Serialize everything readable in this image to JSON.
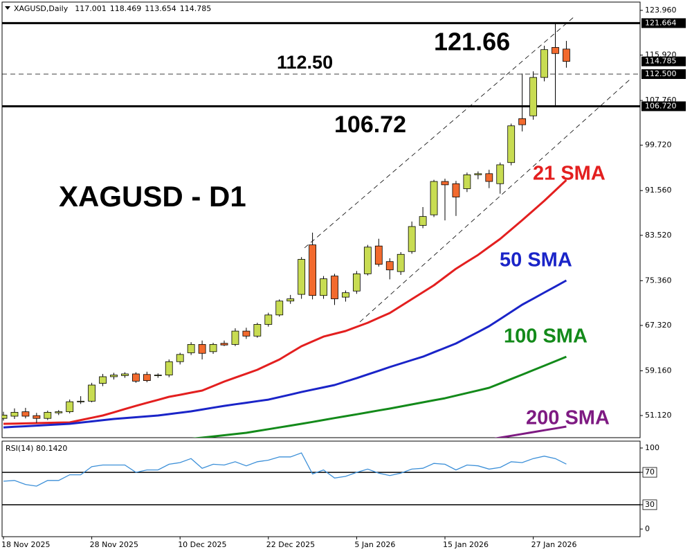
{
  "chart_data": {
    "type": "candlestick",
    "title": "XAGUSD,Daily",
    "categories": [
      "18 Nov 2025",
      null,
      null,
      null,
      null,
      null,
      null,
      null,
      "28 Nov 2025",
      null,
      null,
      null,
      null,
      null,
      null,
      null,
      "10 Dec 2025",
      null,
      null,
      null,
      null,
      null,
      null,
      null,
      "22 Dec 2025",
      null,
      null,
      null,
      null,
      null,
      null,
      null,
      "5 Jan 2026",
      null,
      null,
      null,
      null,
      null,
      null,
      null,
      "15 Jan 2026",
      null,
      null,
      null,
      null,
      null,
      null,
      null,
      "27 Jan 2026",
      null,
      null,
      null
    ],
    "open": [
      50.6,
      51.0,
      51.8,
      51.1,
      50.6,
      51.6,
      51.8,
      53.6,
      53.7,
      56.9,
      58.1,
      58.3,
      58.6,
      58.5,
      58.3,
      58.4,
      60.8,
      62.4,
      63.9,
      62.6,
      64.1,
      63.9,
      66.3,
      65.4,
      67.5,
      69.2,
      71.7,
      72.9,
      81.8,
      72.7,
      76.2,
      72.4,
      73.5,
      76.6,
      81.6,
      78.8,
      77.0,
      80.6,
      85.3,
      87.2,
      93.2,
      92.8,
      91.9,
      94.4,
      94.6,
      92.8,
      96.6,
      104.5,
      105.0,
      111.9,
      117.3,
      117.001
    ],
    "high": [
      51.8,
      52.4,
      52.5,
      51.6,
      52.0,
      52.1,
      54.0,
      54.6,
      57.0,
      58.6,
      58.8,
      58.9,
      58.9,
      59.0,
      58.7,
      61.2,
      62.4,
      64.3,
      64.6,
      64.2,
      64.6,
      66.8,
      66.9,
      67.8,
      69.6,
      72.0,
      72.8,
      79.6,
      84.0,
      76.2,
      76.6,
      73.6,
      77.1,
      81.8,
      82.9,
      79.4,
      80.5,
      86.0,
      88.6,
      93.5,
      93.7,
      93.3,
      94.8,
      95.0,
      95.3,
      96.6,
      103.6,
      112.6,
      113.0,
      117.6,
      121.664,
      118.469
    ],
    "low": [
      50.2,
      50.5,
      50.6,
      49.8,
      50.3,
      51.2,
      51.5,
      53.2,
      53.5,
      56.4,
      57.6,
      57.9,
      57.0,
      57.1,
      57.9,
      58.0,
      60.3,
      62.0,
      61.2,
      62.2,
      63.6,
      63.6,
      64.9,
      65.1,
      67.1,
      68.9,
      71.2,
      72.1,
      72.0,
      72.1,
      71.0,
      71.6,
      73.0,
      76.3,
      77.9,
      75.6,
      76.4,
      80.2,
      84.8,
      86.8,
      86.2,
      87.0,
      91.3,
      93.6,
      92.0,
      91.0,
      96.1,
      102.2,
      104.3,
      111.2,
      106.72,
      113.654
    ],
    "close": [
      51.2,
      51.7,
      51.0,
      50.6,
      51.7,
      51.8,
      53.6,
      53.7,
      56.6,
      58.1,
      58.4,
      58.6,
      57.3,
      57.4,
      58.4,
      60.8,
      62.1,
      63.9,
      62.3,
      63.9,
      63.8,
      66.3,
      65.4,
      67.5,
      69.2,
      71.7,
      72.1,
      79.2,
      72.7,
      75.7,
      72.1,
      73.2,
      76.6,
      81.4,
      78.3,
      77.3,
      80.1,
      85.1,
      86.9,
      93.2,
      92.6,
      90.4,
      94.4,
      94.6,
      93.2,
      96.2,
      103.2,
      103.4,
      111.9,
      116.9,
      116.2,
      114.785
    ],
    "up_color": "#c8dc52",
    "down_color": "#f26a2e",
    "series": [
      {
        "name": "21 SMA",
        "color": "#e31f1f",
        "values": [
          49.63,
          49.67,
          49.71,
          49.75,
          49.8,
          49.84,
          49.88,
          50.3,
          50.71,
          51.12,
          51.7,
          52.28,
          52.86,
          53.4,
          53.94,
          54.48,
          54.85,
          55.23,
          55.6,
          56.41,
          57.22,
          57.93,
          58.63,
          59.34,
          60.27,
          61.2,
          62.39,
          63.57,
          64.44,
          65.31,
          65.81,
          66.31,
          67.06,
          67.8,
          68.68,
          69.55,
          70.8,
          72.04,
          73.29,
          74.53,
          76.02,
          77.51,
          78.76,
          80.0,
          81.44,
          82.87,
          84.55,
          86.23,
          87.98,
          89.72,
          91.59,
          93.45
        ]
      },
      {
        "name": "50 SMA",
        "color": "#1a24c8",
        "values": [
          48.98,
          49.09,
          49.2,
          49.31,
          49.41,
          49.52,
          49.63,
          49.85,
          50.07,
          50.28,
          50.5,
          50.66,
          50.81,
          50.97,
          51.12,
          51.37,
          51.62,
          51.87,
          52.2,
          52.53,
          52.86,
          53.14,
          53.42,
          53.7,
          53.98,
          54.44,
          54.89,
          55.35,
          55.77,
          56.18,
          56.6,
          57.22,
          57.84,
          58.51,
          59.17,
          59.84,
          60.46,
          61.08,
          61.7,
          62.49,
          63.28,
          64.07,
          65.11,
          66.14,
          67.18,
          68.47,
          69.75,
          71.04,
          72.13,
          73.22,
          74.31,
          75.4
        ]
      },
      {
        "name": "100 SMA",
        "color": "#138a1a",
        "values": [
          43.5,
          43.7,
          43.9,
          44.11,
          44.31,
          44.51,
          44.71,
          44.91,
          45.12,
          45.32,
          45.52,
          45.72,
          45.93,
          46.13,
          46.33,
          46.53,
          46.73,
          46.94,
          47.14,
          47.36,
          47.58,
          47.79,
          48.01,
          48.33,
          48.66,
          48.98,
          49.31,
          49.63,
          49.97,
          50.32,
          50.66,
          51.0,
          51.34,
          51.69,
          52.03,
          52.37,
          52.74,
          53.12,
          53.49,
          53.86,
          54.23,
          54.7,
          55.16,
          55.63,
          56.1,
          56.89,
          57.68,
          58.47,
          59.28,
          60.08,
          60.89,
          61.7
        ]
      },
      {
        "name": "200 SMA",
        "color": "#7e1a82",
        "values": [
          null,
          null,
          null,
          null,
          null,
          null,
          null,
          null,
          null,
          null,
          null,
          null,
          null,
          null,
          null,
          null,
          null,
          null,
          null,
          null,
          null,
          null,
          null,
          null,
          null,
          null,
          null,
          null,
          null,
          null,
          null,
          null,
          null,
          null,
          null,
          null,
          null,
          null,
          null,
          null,
          null,
          null,
          null,
          null,
          46.8,
          47.14,
          47.47,
          47.8,
          48.14,
          48.47,
          48.8,
          49.13
        ]
      }
    ],
    "ylim": [
      47.14,
      125.45
    ],
    "yticks": [
      {
        "value": 123.96,
        "label": "123.960"
      },
      {
        "value": 115.92,
        "label": "115.920"
      },
      {
        "value": 107.76,
        "label": "107.760"
      },
      {
        "value": 99.72,
        "label": "99.720"
      },
      {
        "value": 91.56,
        "label": "91.560"
      },
      {
        "value": 83.52,
        "label": "83.520"
      },
      {
        "value": 75.36,
        "label": "75.360"
      },
      {
        "value": 67.32,
        "label": "67.320"
      },
      {
        "value": 59.16,
        "label": "59.160"
      },
      {
        "value": 51.12,
        "label": "51.120"
      }
    ],
    "levels": [
      {
        "value": 121.664,
        "label": "121.664",
        "style": "solid"
      },
      {
        "value": 112.5,
        "label": "112.500",
        "style": "dashed"
      },
      {
        "value": 106.72,
        "label": "106.720",
        "style": "solid"
      }
    ],
    "annotations": [
      {
        "text": "XAGUSD - D1"
      },
      {
        "text": "121.66"
      },
      {
        "text": "112.50"
      },
      {
        "text": "106.72"
      }
    ],
    "rsi": {
      "label": "RSI(14) 80.1420",
      "color": "#3b8fd8",
      "values": [
        59,
        60,
        55,
        53,
        60,
        60,
        67,
        67,
        77,
        79,
        79,
        79,
        70,
        73,
        73,
        80,
        82,
        87,
        75,
        80,
        79,
        83,
        78,
        83,
        85,
        89,
        89,
        94,
        68,
        73,
        63,
        65,
        70,
        74,
        69,
        66,
        69,
        74,
        75,
        81,
        80,
        73,
        79,
        78,
        74,
        76,
        83,
        82,
        87,
        90,
        87,
        80.142
      ],
      "ylim": [
        -9.4,
        108.5
      ],
      "yticks": [
        100,
        70,
        30,
        0
      ],
      "levels": [
        70,
        30
      ]
    }
  }
}
